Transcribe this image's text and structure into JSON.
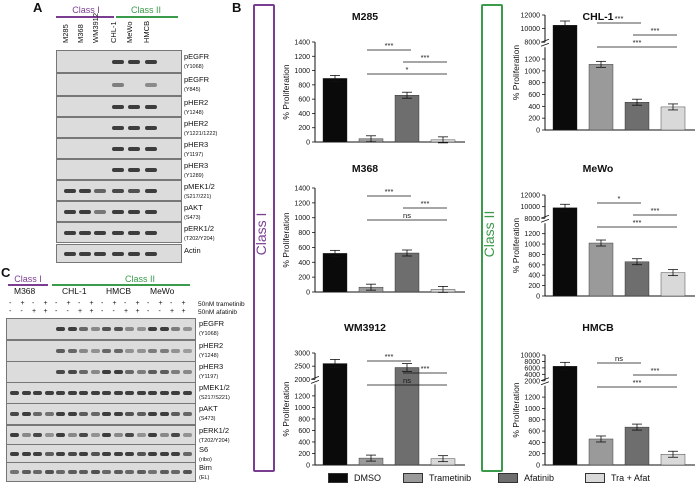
{
  "panel_a": {
    "letter": "A",
    "class1": "Class I",
    "class2": "Class II",
    "lanes": [
      "M285",
      "M368",
      "WM3912",
      "CHL-1",
      "MeWo",
      "HMCB"
    ],
    "blots": [
      {
        "name": "pEGFR",
        "site": "(Y1068)"
      },
      {
        "name": "pEGFR",
        "site": "(Y845)"
      },
      {
        "name": "pHER2",
        "site": "(Y1248)"
      },
      {
        "name": "pHER2",
        "site": "(Y1221/1222)"
      },
      {
        "name": "pHER3",
        "site": "(Y1197)"
      },
      {
        "name": "pHER3",
        "site": "(Y1289)"
      },
      {
        "name": "pMEK1/2",
        "site": "(S217/221)"
      },
      {
        "name": "pAKT",
        "site": "(S473)"
      },
      {
        "name": "pERK1/2",
        "site": "(T202/Y204)"
      },
      {
        "name": "Actin",
        "site": ""
      }
    ]
  },
  "panel_c": {
    "letter": "C",
    "class1": "Class I",
    "class2": "Class II",
    "groups": [
      "M368",
      "CHL-1",
      "HMCB",
      "MeWo"
    ],
    "treat1": "50nM trametinib",
    "treat2": "50nM afatinib",
    "row1": [
      "-",
      "+",
      "-",
      "+",
      "-",
      "+",
      "-",
      "+",
      "-",
      "+",
      "-",
      "+",
      "-",
      "+",
      "-",
      "+"
    ],
    "row2": [
      "-",
      "-",
      "+",
      "+",
      "-",
      "-",
      "+",
      "+",
      "-",
      "-",
      "+",
      "+",
      "-",
      "-",
      "+",
      "+"
    ],
    "blots": [
      {
        "name": "pEGFR",
        "site": "(Y1068)"
      },
      {
        "name": "pHER2",
        "site": "(Y1248)"
      },
      {
        "name": "pHER3",
        "site": "(Y1197)"
      },
      {
        "name": "pMEK1/2",
        "site": "(S217/S221)"
      },
      {
        "name": "pAKT",
        "site": "(S473)"
      },
      {
        "name": "pERK1/2",
        "site": "(T202/Y204)"
      },
      {
        "name": "S6",
        "site": "(ribo)"
      },
      {
        "name": "Bim",
        "site": "(EL)"
      }
    ]
  },
  "panel_b": {
    "letter": "B",
    "class1_label": "Class I",
    "class2_label": "Class II",
    "legend": [
      "DMSO",
      "Trametinib",
      "Afatinib",
      "Tra + Afat"
    ],
    "colors": {
      "dmso": "#0a0a0a",
      "tram": "#9a9a9a",
      "afat": "#6e6e6e",
      "combo": "#d9d9d9",
      "purple": "#7a3d91",
      "green": "#3a9b4a"
    }
  },
  "chart_data": [
    {
      "type": "bar",
      "title": "M285",
      "ylabel": "% Proliferation",
      "categories": [
        "DMSO",
        "Trametinib",
        "Afatinib",
        "Tra + Afat"
      ],
      "values": [
        890,
        45,
        655,
        30
      ],
      "ylim": [
        0,
        1400
      ],
      "ticks": [
        "0",
        "200",
        "400",
        "600",
        "800",
        "1000",
        "1200",
        "1400"
      ],
      "annotations": [
        {
          "pair": "Trametinib-Afatinib",
          "text": "***"
        },
        {
          "pair": "Afatinib-Tra + Afat",
          "text": "***"
        },
        {
          "pair": "Trametinib-Tra + Afat",
          "text": "*"
        }
      ]
    },
    {
      "type": "bar",
      "title": "M368",
      "ylabel": "% Proliferation",
      "categories": [
        "DMSO",
        "Trametinib",
        "Afatinib",
        "Tra + Afat"
      ],
      "values": [
        520,
        65,
        525,
        35
      ],
      "ylim": [
        0,
        1400
      ],
      "ticks": [
        "0",
        "200",
        "400",
        "600",
        "800",
        "1000",
        "1200",
        "1400"
      ],
      "annotations": [
        {
          "pair": "Trametinib-Afatinib",
          "text": "***"
        },
        {
          "pair": "Afatinib-Tra + Afat",
          "text": "***"
        },
        {
          "pair": "Trametinib-Tra + Afat",
          "text": "ns"
        }
      ]
    },
    {
      "type": "bar",
      "title": "WM3912",
      "ylabel": "% Proliferation",
      "categories": [
        "DMSO",
        "Trametinib",
        "Afatinib",
        "Tra + Afat"
      ],
      "values": [
        2600,
        120,
        2450,
        110
      ],
      "ylim": [
        0,
        3000
      ],
      "axis_break": [
        1400,
        2000
      ],
      "ticks": [
        "0",
        "200",
        "400",
        "600",
        "800",
        "1000",
        "1200",
        "2000",
        "2500",
        "3000"
      ],
      "annotations": [
        {
          "pair": "Trametinib-Afatinib",
          "text": "***"
        },
        {
          "pair": "Afatinib-Tra + Afat",
          "text": "***"
        },
        {
          "pair": "Trametinib-Tra + Afat",
          "text": "ns"
        }
      ]
    },
    {
      "type": "bar",
      "title": "CHL-1",
      "ylabel": "% Proliferation",
      "categories": [
        "DMSO",
        "Trametinib",
        "Afatinib",
        "Tra + Afat"
      ],
      "values": [
        10500,
        1110,
        470,
        390
      ],
      "ylim": [
        0,
        12000
      ],
      "axis_break": [
        1400,
        8000
      ],
      "ticks": [
        "0",
        "200",
        "400",
        "600",
        "800",
        "1000",
        "1200",
        "8000",
        "10000",
        "12000"
      ],
      "annotations": [
        {
          "pair": "Trametinib-Afatinib",
          "text": "***"
        },
        {
          "pair": "Afatinib-Tra + Afat",
          "text": "***"
        },
        {
          "pair": "Trametinib-Tra + Afat",
          "text": "***"
        }
      ]
    },
    {
      "type": "bar",
      "title": "MeWo",
      "ylabel": "% Proliferation",
      "categories": [
        "DMSO",
        "Trametinib",
        "Afatinib",
        "Tra + Afat"
      ],
      "values": [
        9800,
        1020,
        660,
        450
      ],
      "ylim": [
        0,
        12000
      ],
      "axis_break": [
        1400,
        8000
      ],
      "ticks": [
        "0",
        "200",
        "400",
        "600",
        "800",
        "1000",
        "1200",
        "8000",
        "10000",
        "12000"
      ],
      "annotations": [
        {
          "pair": "Trametinib-Afatinib",
          "text": "*"
        },
        {
          "pair": "Afatinib-Tra + Afat",
          "text": "***"
        },
        {
          "pair": "Trametinib-Tra + Afat",
          "text": "***"
        }
      ]
    },
    {
      "type": "bar",
      "title": "HMCB",
      "ylabel": "% Proliferation",
      "categories": [
        "DMSO",
        "Trametinib",
        "Afatinib",
        "Tra + Afat"
      ],
      "values": [
        6500,
        460,
        670,
        190
      ],
      "ylim": [
        0,
        10000
      ],
      "axis_break": [
        1400,
        2000
      ],
      "ticks": [
        "0",
        "200",
        "400",
        "600",
        "800",
        "1000",
        "1200",
        "2000",
        "4000",
        "6000",
        "8000",
        "10000"
      ],
      "annotations": [
        {
          "pair": "Trametinib-Afatinib",
          "text": "ns"
        },
        {
          "pair": "Afatinib-Tra + Afat",
          "text": "***"
        },
        {
          "pair": "Trametinib-Tra + Afat",
          "text": "***"
        }
      ]
    }
  ]
}
